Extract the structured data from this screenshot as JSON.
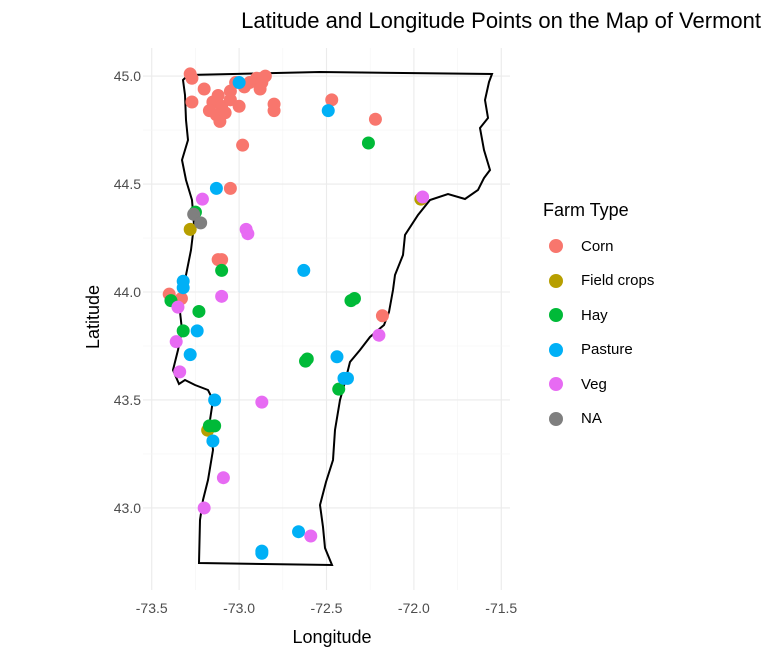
{
  "chart_data": {
    "type": "scatter",
    "title": "Latitude and Longitude Points on the Map of Vermont",
    "xlabel": "Longitude",
    "ylabel": "Latitude",
    "xlim": [
      -73.55,
      -71.45
    ],
    "ylim": [
      42.62,
      45.13
    ],
    "xticks": [
      -73.5,
      -73.0,
      -72.5,
      -72.0,
      -71.5
    ],
    "xtick_labels": [
      "-73.5",
      "-73.0",
      "-72.5",
      "-72.0",
      "-71.5"
    ],
    "yticks": [
      43.0,
      43.5,
      44.0,
      44.5,
      45.0
    ],
    "ytick_labels": [
      "43.0",
      "43.5",
      "44.0",
      "44.5",
      "45.0"
    ],
    "grid": true,
    "legend_title": "Farm Type",
    "legend_position": "right",
    "series": [
      {
        "name": "Corn",
        "color": "#F8766D",
        "points": [
          [
            -73.28,
            45.01
          ],
          [
            -73.27,
            44.99
          ],
          [
            -73.2,
            44.94
          ],
          [
            -73.27,
            44.88
          ],
          [
            -73.15,
            44.88
          ],
          [
            -73.12,
            44.91
          ],
          [
            -73.1,
            44.86
          ],
          [
            -73.05,
            44.93
          ],
          [
            -73.02,
            44.97
          ],
          [
            -72.97,
            44.95
          ],
          [
            -72.94,
            44.97
          ],
          [
            -72.9,
            44.99
          ],
          [
            -72.87,
            44.97
          ],
          [
            -72.85,
            45.0
          ],
          [
            -72.8,
            44.87
          ],
          [
            -72.8,
            44.84
          ],
          [
            -72.88,
            44.94
          ],
          [
            -73.17,
            44.84
          ],
          [
            -73.13,
            44.82
          ],
          [
            -73.11,
            44.79
          ],
          [
            -73.08,
            44.83
          ],
          [
            -73.05,
            44.89
          ],
          [
            -73.0,
            44.86
          ],
          [
            -72.98,
            44.68
          ],
          [
            -73.05,
            44.48
          ],
          [
            -72.47,
            44.89
          ],
          [
            -72.22,
            44.8
          ],
          [
            -73.12,
            44.15
          ],
          [
            -73.1,
            44.15
          ],
          [
            -73.4,
            43.99
          ],
          [
            -73.33,
            43.97
          ],
          [
            -72.18,
            43.89
          ]
        ]
      },
      {
        "name": "Field crops",
        "color": "#B79F00",
        "points": [
          [
            -73.28,
            44.29
          ],
          [
            -71.96,
            44.43
          ],
          [
            -73.18,
            43.36
          ]
        ]
      },
      {
        "name": "Hay",
        "color": "#00BA38",
        "points": [
          [
            -72.26,
            44.69
          ],
          [
            -73.25,
            44.37
          ],
          [
            -73.1,
            44.1
          ],
          [
            -73.39,
            43.96
          ],
          [
            -72.36,
            43.96
          ],
          [
            -72.34,
            43.97
          ],
          [
            -73.23,
            43.91
          ],
          [
            -73.32,
            43.82
          ],
          [
            -72.61,
            43.69
          ],
          [
            -72.62,
            43.68
          ],
          [
            -72.43,
            43.55
          ],
          [
            -73.14,
            43.38
          ],
          [
            -73.17,
            43.38
          ]
        ]
      },
      {
        "name": "Pasture",
        "color": "#00B0F6",
        "points": [
          [
            -73.0,
            44.97
          ],
          [
            -72.49,
            44.84
          ],
          [
            -73.13,
            44.48
          ],
          [
            -72.63,
            44.1
          ],
          [
            -73.32,
            44.05
          ],
          [
            -73.32,
            44.02
          ],
          [
            -73.24,
            43.82
          ],
          [
            -73.28,
            43.71
          ],
          [
            -72.44,
            43.7
          ],
          [
            -72.4,
            43.6
          ],
          [
            -72.38,
            43.6
          ],
          [
            -73.14,
            43.5
          ],
          [
            -73.15,
            43.31
          ],
          [
            -72.66,
            42.89
          ],
          [
            -72.87,
            42.8
          ],
          [
            -72.87,
            42.79
          ]
        ]
      },
      {
        "name": "Veg",
        "color": "#E76BF3",
        "points": [
          [
            -73.21,
            44.43
          ],
          [
            -71.95,
            44.44
          ],
          [
            -72.96,
            44.29
          ],
          [
            -72.95,
            44.27
          ],
          [
            -73.1,
            43.98
          ],
          [
            -73.35,
            43.93
          ],
          [
            -72.2,
            43.8
          ],
          [
            -73.36,
            43.77
          ],
          [
            -73.34,
            43.63
          ],
          [
            -72.87,
            43.49
          ],
          [
            -73.09,
            43.14
          ],
          [
            -73.2,
            43.0
          ],
          [
            -72.59,
            42.87
          ]
        ]
      },
      {
        "name": "NA",
        "color": "#7F7F7F",
        "points": [
          [
            -73.26,
            44.36
          ],
          [
            -73.22,
            44.32
          ]
        ]
      }
    ]
  }
}
